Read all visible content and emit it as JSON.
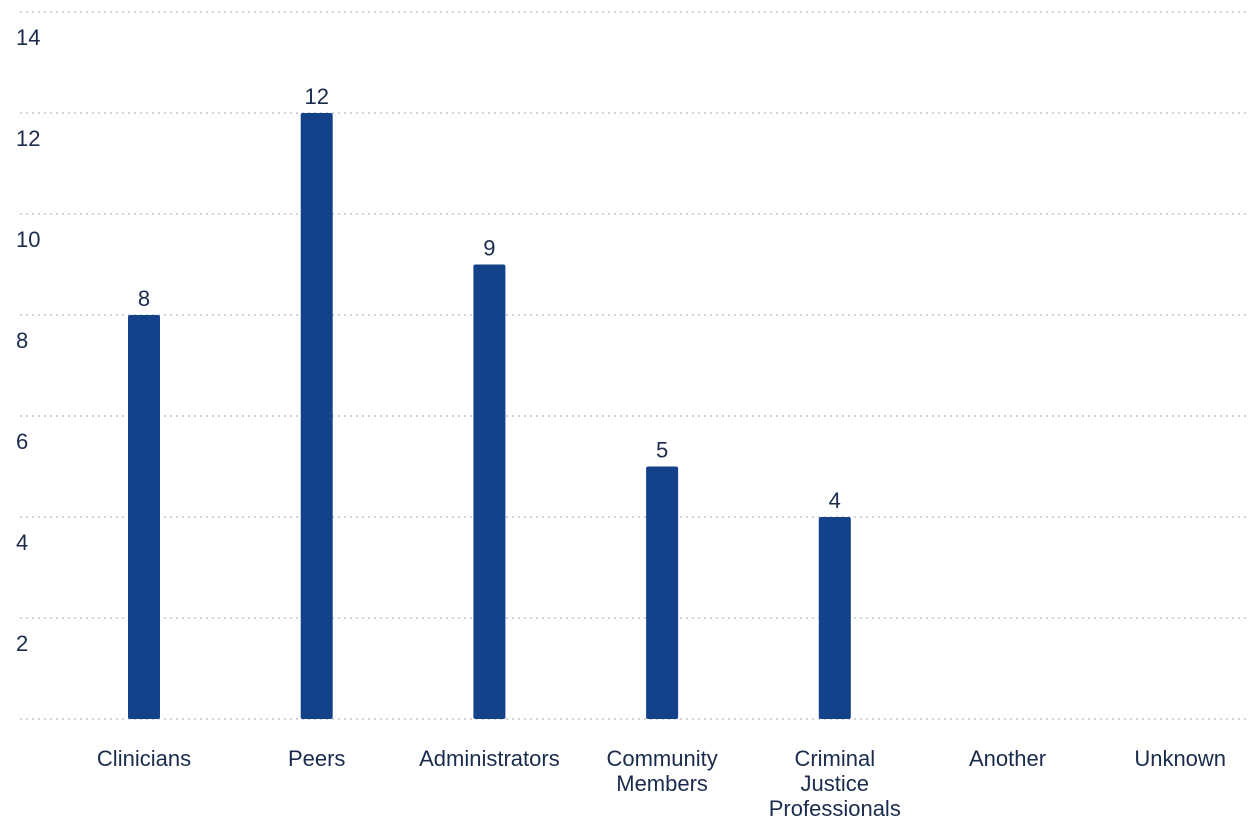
{
  "chart_data": {
    "type": "bar",
    "categories": [
      "Clinicians",
      "Peers",
      "Administrators",
      "Community Members",
      "Criminal Justice Professionals",
      "Another",
      "Unknown"
    ],
    "category_lines": [
      [
        "Clinicians"
      ],
      [
        "Peers"
      ],
      [
        "Administrators"
      ],
      [
        "Community",
        "Members"
      ],
      [
        "Criminal",
        "Justice",
        "Professionals"
      ],
      [
        "Another"
      ],
      [
        "Unknown"
      ]
    ],
    "values": [
      8,
      12,
      9,
      5,
      4,
      0,
      0
    ],
    "value_labels": [
      "8",
      "12",
      "9",
      "5",
      "4",
      "",
      ""
    ],
    "yticks": [
      2,
      4,
      6,
      8,
      10,
      12,
      14
    ],
    "ylim": [
      0,
      14
    ],
    "grid": true,
    "bar_color": "#13418a",
    "title": "",
    "xlabel": "",
    "ylabel": ""
  }
}
